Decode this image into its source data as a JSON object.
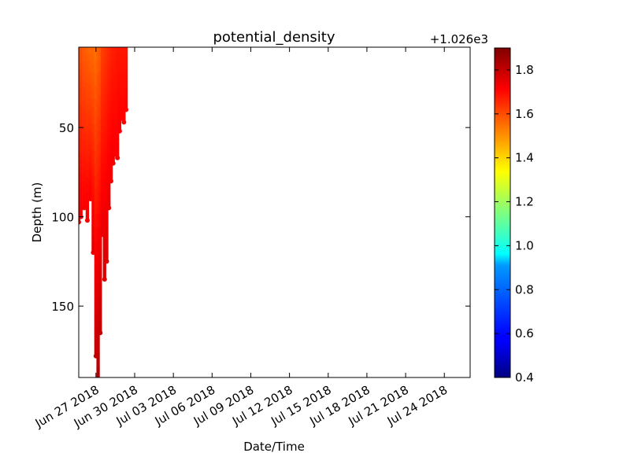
{
  "chart_data": {
    "type": "scatter",
    "title": "potential_density",
    "xlabel": "Date/Time",
    "ylabel": "Depth (m)",
    "x_axis": "date",
    "xlim": [
      "2018-06-25T16:00",
      "2018-07-26T00:00"
    ],
    "ylim": [
      190,
      5
    ],
    "y_inverted": true,
    "x_ticks": [
      {
        "date": "2018-06-27",
        "label": "Jun 27 2018"
      },
      {
        "date": "2018-06-30",
        "label": "Jun 30 2018"
      },
      {
        "date": "2018-07-03",
        "label": "Jul 03 2018"
      },
      {
        "date": "2018-07-06",
        "label": "Jul 06 2018"
      },
      {
        "date": "2018-07-09",
        "label": "Jul 09 2018"
      },
      {
        "date": "2018-07-12",
        "label": "Jul 12 2018"
      },
      {
        "date": "2018-07-15",
        "label": "Jul 15 2018"
      },
      {
        "date": "2018-07-18",
        "label": "Jul 18 2018"
      },
      {
        "date": "2018-07-21",
        "label": "Jul 21 2018"
      },
      {
        "date": "2018-07-24",
        "label": "Jul 24 2018"
      }
    ],
    "y_ticks": [
      {
        "value": 50,
        "label": "50"
      },
      {
        "value": 100,
        "label": "100"
      },
      {
        "value": 150,
        "label": "150"
      }
    ],
    "colorbar": {
      "colormap": "jet",
      "range": [
        0.4,
        1.9
      ],
      "ticks": [
        {
          "value": 0.4,
          "label": "0.4"
        },
        {
          "value": 0.6,
          "label": "0.6"
        },
        {
          "value": 0.8,
          "label": "0.8"
        },
        {
          "value": 1.0,
          "label": "1.0"
        },
        {
          "value": 1.2,
          "label": "1.2"
        },
        {
          "value": 1.4,
          "label": "1.4"
        },
        {
          "value": 1.6,
          "label": "1.6"
        },
        {
          "value": 1.8,
          "label": "1.8"
        }
      ],
      "offset_label": "+1.026e3"
    },
    "profiles": [
      {
        "time": "2018-06-25T16:00",
        "max_depth": 103,
        "top_value": 1.58,
        "bottom_value": 1.72
      },
      {
        "time": "2018-06-25T20:00",
        "max_depth": 100,
        "top_value": 1.6,
        "bottom_value": 1.73
      },
      {
        "time": "2018-06-26T02:00",
        "max_depth": 95,
        "top_value": 1.58,
        "bottom_value": 1.72
      },
      {
        "time": "2018-06-26T08:00",
        "max_depth": 102,
        "top_value": 1.57,
        "bottom_value": 1.73
      },
      {
        "time": "2018-06-26T14:00",
        "max_depth": 90,
        "top_value": 1.56,
        "bottom_value": 1.72
      },
      {
        "time": "2018-06-26T19:00",
        "max_depth": 120,
        "top_value": 1.56,
        "bottom_value": 1.75
      },
      {
        "time": "2018-06-27T00:00",
        "max_depth": 178,
        "top_value": 1.55,
        "bottom_value": 1.8
      },
      {
        "time": "2018-06-27T04:00",
        "max_depth": 192,
        "top_value": 1.57,
        "bottom_value": 1.82
      },
      {
        "time": "2018-06-27T08:00",
        "max_depth": 165,
        "top_value": 1.58,
        "bottom_value": 1.8
      },
      {
        "time": "2018-06-27T12:00",
        "max_depth": 110,
        "top_value": 1.62,
        "bottom_value": 1.74
      },
      {
        "time": "2018-06-27T16:00",
        "max_depth": 135,
        "top_value": 1.63,
        "bottom_value": 1.77
      },
      {
        "time": "2018-06-27T20:00",
        "max_depth": 125,
        "top_value": 1.64,
        "bottom_value": 1.76
      },
      {
        "time": "2018-06-28T00:00",
        "max_depth": 95,
        "top_value": 1.65,
        "bottom_value": 1.74
      },
      {
        "time": "2018-06-28T04:00",
        "max_depth": 80,
        "top_value": 1.66,
        "bottom_value": 1.73
      },
      {
        "time": "2018-06-28T08:00",
        "max_depth": 70,
        "top_value": 1.67,
        "bottom_value": 1.73
      },
      {
        "time": "2018-06-28T12:00",
        "max_depth": 65,
        "top_value": 1.67,
        "bottom_value": 1.72
      },
      {
        "time": "2018-06-28T16:00",
        "max_depth": 67,
        "top_value": 1.68,
        "bottom_value": 1.72
      },
      {
        "time": "2018-06-28T20:00",
        "max_depth": 52,
        "top_value": 1.68,
        "bottom_value": 1.72
      },
      {
        "time": "2018-06-29T00:00",
        "max_depth": 45,
        "top_value": 1.68,
        "bottom_value": 1.71
      },
      {
        "time": "2018-06-29T04:00",
        "max_depth": 47,
        "top_value": 1.68,
        "bottom_value": 1.71
      },
      {
        "time": "2018-06-29T08:00",
        "max_depth": 40,
        "top_value": 1.68,
        "bottom_value": 1.71
      }
    ]
  }
}
